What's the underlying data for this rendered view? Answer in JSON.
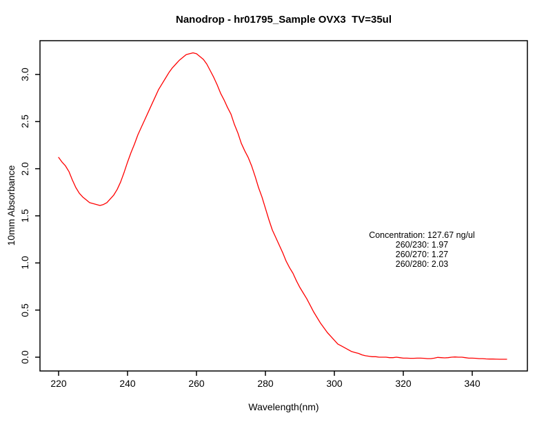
{
  "chart_data": {
    "type": "line",
    "title": "Nanodrop - hr01795_Sample OVX3  TV=35ul",
    "xlabel": "Wavelength(nm)",
    "ylabel": "10mm Absorbance",
    "x_ticks": [
      220,
      240,
      260,
      280,
      300,
      320,
      340
    ],
    "y_ticks": [
      0.0,
      0.5,
      1.0,
      1.5,
      2.0,
      2.5,
      3.0
    ],
    "x_tick_labels": [
      "220",
      "240",
      "260",
      "280",
      "300",
      "320",
      "340"
    ],
    "y_tick_labels": [
      "0.0",
      "0.5",
      "1.0",
      "1.5",
      "2.0",
      "2.5",
      "3.0"
    ],
    "xlim": [
      214.6,
      356.0
    ],
    "ylim": [
      -0.146,
      3.36
    ],
    "grid": false,
    "legend": "none",
    "line_color": "#ff0000",
    "axis_color": "#000000",
    "annotation": {
      "lines": [
        "Concentration: 127.67 ng/ul",
        "260/230: 1.97",
        "260/270: 1.27",
        "260/280: 2.03"
      ]
    },
    "series": [
      {
        "name": "10mm Absorbance",
        "x": [
          220,
          221,
          222,
          223,
          224,
          225,
          226,
          227,
          228,
          229,
          230,
          231,
          232,
          233,
          234,
          235,
          236,
          237,
          238,
          239,
          240,
          241,
          242,
          243,
          244,
          245,
          246,
          247,
          248,
          249,
          250,
          251,
          252,
          253,
          254,
          255,
          256,
          257,
          258,
          259,
          260,
          261,
          262,
          263,
          264,
          265,
          266,
          267,
          268,
          269,
          270,
          271,
          272,
          273,
          274,
          275,
          276,
          277,
          278,
          279,
          280,
          281,
          282,
          283,
          284,
          285,
          286,
          287,
          288,
          289,
          290,
          291,
          292,
          293,
          294,
          295,
          296,
          297,
          298,
          299,
          300,
          301,
          302,
          303,
          304,
          305,
          306,
          307,
          308,
          309,
          310,
          311,
          312,
          313,
          314,
          315,
          316,
          317,
          318,
          319,
          320,
          321,
          322,
          323,
          324,
          325,
          326,
          327,
          328,
          329,
          330,
          331,
          332,
          333,
          334,
          335,
          336,
          337,
          338,
          339,
          340,
          341,
          342,
          343,
          344,
          345,
          346,
          347,
          348,
          349,
          350
        ],
        "y": [
          2.12,
          2.07,
          2.03,
          1.97,
          1.88,
          1.8,
          1.74,
          1.7,
          1.67,
          1.64,
          1.63,
          1.62,
          1.61,
          1.62,
          1.64,
          1.68,
          1.72,
          1.78,
          1.86,
          1.96,
          2.07,
          2.17,
          2.26,
          2.36,
          2.44,
          2.52,
          2.6,
          2.68,
          2.76,
          2.84,
          2.9,
          2.96,
          3.02,
          3.07,
          3.11,
          3.15,
          3.18,
          3.21,
          3.22,
          3.23,
          3.22,
          3.19,
          3.16,
          3.11,
          3.04,
          2.97,
          2.89,
          2.8,
          2.73,
          2.65,
          2.58,
          2.47,
          2.38,
          2.27,
          2.19,
          2.12,
          2.03,
          1.92,
          1.8,
          1.7,
          1.58,
          1.46,
          1.35,
          1.27,
          1.19,
          1.11,
          1.02,
          0.95,
          0.89,
          0.81,
          0.74,
          0.68,
          0.62,
          0.55,
          0.48,
          0.42,
          0.36,
          0.31,
          0.26,
          0.22,
          0.18,
          0.14,
          0.12,
          0.1,
          0.08,
          0.06,
          0.05,
          0.04,
          0.025,
          0.015,
          0.01,
          0.005,
          0.005,
          0.0,
          0.0,
          0.0,
          -0.005,
          -0.005,
          0.0,
          -0.005,
          -0.01,
          -0.01,
          -0.012,
          -0.012,
          -0.01,
          -0.01,
          -0.012,
          -0.015,
          -0.015,
          -0.01,
          -0.002,
          -0.005,
          -0.007,
          -0.005,
          0.0,
          0.002,
          0.0,
          0.0,
          -0.005,
          -0.01,
          -0.01,
          -0.012,
          -0.015,
          -0.015,
          -0.018,
          -0.02,
          -0.02,
          -0.021,
          -0.022,
          -0.022,
          -0.022
        ]
      }
    ]
  }
}
